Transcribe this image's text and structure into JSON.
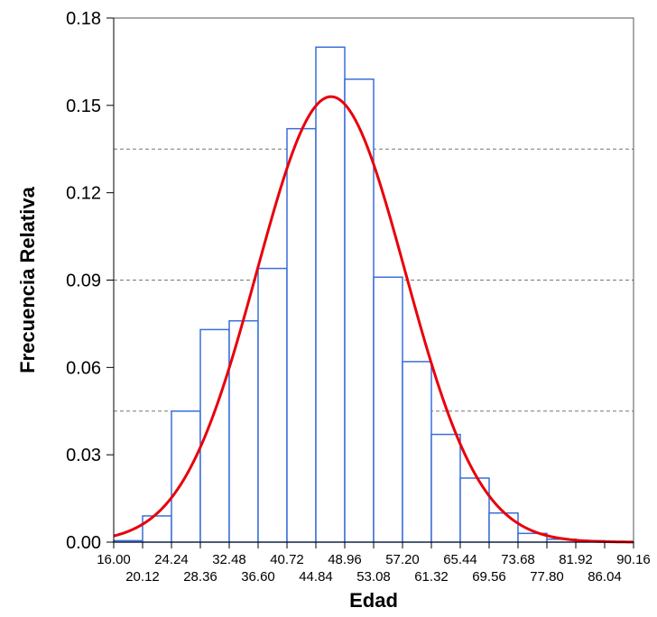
{
  "chart_data": {
    "type": "bar",
    "subtype": "histogram-with-normal-curve",
    "xlabel": "Edad",
    "ylabel": "Frecuencia Relativa",
    "ylim": [
      0,
      0.18
    ],
    "y_ticks": [
      "0.00",
      "0.03",
      "0.06",
      "0.09",
      "0.12",
      "0.15",
      "0.18"
    ],
    "bins_edges": [
      16.0,
      20.12,
      24.24,
      28.36,
      32.48,
      36.6,
      40.72,
      44.84,
      48.96,
      53.08,
      57.2,
      61.32,
      65.44,
      69.56,
      73.68,
      77.8,
      81.92,
      86.04,
      90.16
    ],
    "x_tick_labels_upper": [
      "16.00",
      "24.24",
      "32.48",
      "40.72",
      "48.96",
      "57.20",
      "65.44",
      "73.68",
      "81.92",
      "90.16"
    ],
    "x_tick_labels_lower": [
      "20.12",
      "28.36",
      "36.60",
      "44.84",
      "53.08",
      "61.32",
      "69.56",
      "77.80",
      "86.04"
    ],
    "values": [
      0.0005,
      0.009,
      0.045,
      0.073,
      0.076,
      0.094,
      0.142,
      0.17,
      0.159,
      0.091,
      0.062,
      0.037,
      0.022,
      0.01,
      0.003,
      0.001,
      0.0005,
      0.0002
    ],
    "curve": {
      "type": "normal",
      "mean": 47,
      "sd": 10.6,
      "peak": 0.153,
      "color": "#e8000b"
    },
    "bar_edge_color": "#3a6fd8",
    "bar_fill_color": "#ffffff",
    "reference_lines": [
      0.045,
      0.09,
      0.135
    ],
    "grid": false,
    "legend": "none"
  }
}
